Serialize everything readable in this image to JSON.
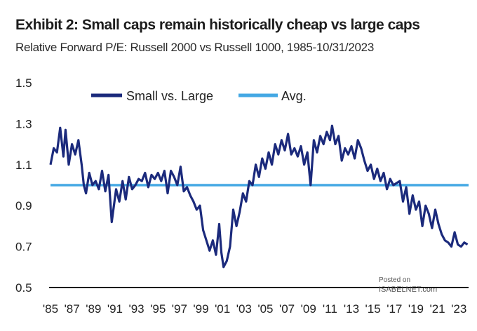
{
  "chart_data": {
    "type": "line",
    "title": "Exhibit 2: Small caps remain historically cheap vs large caps",
    "subtitle": "Relative Forward P/E: Russell 2000 vs Russell 1000, 1985-10/31/2023",
    "x_tick_labels": [
      "'85",
      "'87",
      "'89",
      "'91",
      "'93",
      "'95",
      "'97",
      "'99",
      "'01",
      "'03",
      "'05",
      "'07",
      "'09",
      "'11",
      "'13",
      "'15",
      "'17",
      "'19",
      "'21",
      "'23"
    ],
    "x_tick_years": [
      1985,
      1987,
      1989,
      1991,
      1993,
      1995,
      1997,
      1999,
      2001,
      2003,
      2005,
      2007,
      2009,
      2011,
      2013,
      2015,
      2017,
      2019,
      2021,
      2023
    ],
    "xlim": [
      1985,
      2023.9
    ],
    "y_tick_labels": [
      "1.5",
      "1.3",
      "1.1",
      "0.9",
      "0.7",
      "0.5"
    ],
    "y_ticks": [
      1.5,
      1.3,
      1.1,
      0.9,
      0.7,
      0.5
    ],
    "ylim": [
      0.5,
      1.5
    ],
    "grid": false,
    "legend_position": "top-left",
    "colors": {
      "series": "#1b2a7c",
      "average": "#44a8e4",
      "axis": "#000000"
    },
    "series": [
      {
        "name": "Small vs. Large",
        "x": [
          1985.0,
          1985.3,
          1985.6,
          1985.9,
          1986.2,
          1986.4,
          1986.7,
          1987.0,
          1987.3,
          1987.6,
          1987.9,
          1988.1,
          1988.3,
          1988.6,
          1988.9,
          1989.2,
          1989.5,
          1989.8,
          1990.1,
          1990.4,
          1990.7,
          1990.9,
          1991.1,
          1991.4,
          1991.7,
          1992.0,
          1992.3,
          1992.6,
          1992.9,
          1993.2,
          1993.5,
          1993.8,
          1994.1,
          1994.4,
          1994.7,
          1995.0,
          1995.3,
          1995.6,
          1995.9,
          1996.2,
          1996.5,
          1996.8,
          1997.1,
          1997.4,
          1997.7,
          1998.0,
          1998.3,
          1998.6,
          1998.9,
          1999.2,
          1999.5,
          1999.8,
          2000.1,
          2000.4,
          2000.7,
          2000.9,
          2001.1,
          2001.4,
          2001.7,
          2002.0,
          2002.3,
          2002.6,
          2002.9,
          2003.2,
          2003.5,
          2003.8,
          2004.1,
          2004.4,
          2004.7,
          2005.0,
          2005.3,
          2005.6,
          2005.9,
          2006.2,
          2006.5,
          2006.8,
          2007.1,
          2007.4,
          2007.7,
          2008.0,
          2008.3,
          2008.6,
          2008.9,
          2009.2,
          2009.5,
          2009.8,
          2010.1,
          2010.4,
          2010.7,
          2011.0,
          2011.2,
          2011.5,
          2011.8,
          2012.1,
          2012.4,
          2012.7,
          2013.0,
          2013.3,
          2013.6,
          2013.9,
          2014.2,
          2014.5,
          2014.8,
          2015.1,
          2015.4,
          2015.7,
          2016.0,
          2016.3,
          2016.6,
          2016.9,
          2017.2,
          2017.5,
          2017.8,
          2018.1,
          2018.4,
          2018.7,
          2019.0,
          2019.3,
          2019.6,
          2019.9,
          2020.2,
          2020.5,
          2020.8,
          2021.1,
          2021.4,
          2021.7,
          2022.0,
          2022.3,
          2022.6,
          2022.9,
          2023.2,
          2023.5,
          2023.8
        ],
        "values": [
          1.1,
          1.18,
          1.16,
          1.28,
          1.14,
          1.27,
          1.1,
          1.2,
          1.15,
          1.22,
          1.1,
          1.0,
          0.96,
          1.06,
          1.0,
          1.02,
          0.98,
          1.07,
          0.97,
          1.05,
          0.82,
          0.9,
          0.98,
          0.92,
          1.02,
          0.93,
          1.04,
          0.98,
          1.0,
          1.03,
          1.02,
          1.06,
          0.99,
          1.05,
          1.03,
          1.06,
          1.02,
          1.07,
          0.96,
          1.07,
          1.04,
          1.0,
          1.09,
          0.97,
          0.99,
          0.95,
          0.92,
          0.88,
          0.9,
          0.78,
          0.73,
          0.68,
          0.73,
          0.66,
          0.81,
          0.67,
          0.6,
          0.63,
          0.7,
          0.88,
          0.8,
          0.87,
          0.96,
          0.92,
          1.02,
          1.0,
          1.1,
          1.04,
          1.13,
          1.08,
          1.16,
          1.1,
          1.2,
          1.15,
          1.22,
          1.17,
          1.25,
          1.15,
          1.18,
          1.14,
          1.19,
          1.1,
          1.16,
          1.0,
          1.22,
          1.16,
          1.24,
          1.2,
          1.26,
          1.22,
          1.29,
          1.2,
          1.24,
          1.12,
          1.18,
          1.15,
          1.19,
          1.13,
          1.22,
          1.18,
          1.12,
          1.07,
          1.1,
          1.03,
          1.08,
          1.02,
          1.06,
          0.98,
          1.03,
          1.0,
          1.01,
          1.02,
          0.92,
          0.99,
          0.86,
          0.95,
          0.88,
          0.92,
          0.8,
          0.9,
          0.86,
          0.79,
          0.88,
          0.81,
          0.76,
          0.73,
          0.72,
          0.7,
          0.77,
          0.71,
          0.7,
          0.72,
          0.71
        ]
      },
      {
        "name": "Avg.",
        "value": 1.0
      }
    ],
    "watermark": {
      "line1": "Posted on",
      "line2": "ISABELNET.com"
    }
  }
}
